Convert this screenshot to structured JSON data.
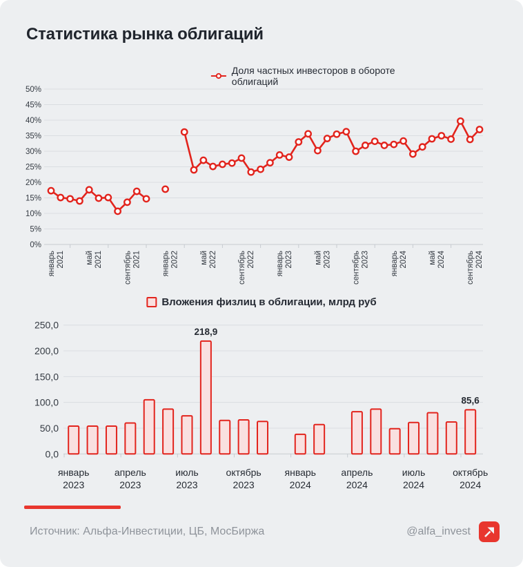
{
  "title": "Статистика рынка облигаций",
  "colors": {
    "background": "#EDEFF1",
    "accent_red": "#E2241D",
    "bar_fill": "#F9E0E0",
    "logo_red": "#E8362E",
    "title_text": "#20252D",
    "axis_text": "#343A42",
    "muted_text": "#8E939A",
    "gridline": "#DADDE1"
  },
  "chart_data": [
    {
      "type": "line",
      "legend": "Доля частных инвесторов в обороте облигаций",
      "unit": "%",
      "x_freq": "monthly",
      "x_start": "январь 2021",
      "x_end": "октябрь 2024",
      "values": [
        17.3,
        15.1,
        14.7,
        14.0,
        17.6,
        14.9,
        15.1,
        10.7,
        13.6,
        17.1,
        14.7,
        null,
        17.8,
        null,
        36.2,
        24.0,
        27.1,
        25.1,
        25.8,
        26.2,
        27.8,
        23.3,
        24.2,
        26.3,
        28.8,
        28.1,
        33.0,
        35.6,
        30.2,
        34.1,
        35.5,
        36.3,
        30.0,
        31.9,
        33.2,
        31.9,
        32.2,
        33.3,
        29.1,
        31.4,
        34.0,
        35.0,
        33.9,
        39.7,
        33.8,
        37.0
      ],
      "ylim": [
        0,
        50
      ],
      "ystep": 5,
      "ytick_format": "percent",
      "grid": true,
      "legend_position": "top",
      "x_ticks": [
        {
          "index": 0,
          "line1": "январь",
          "line2": "2021"
        },
        {
          "index": 4,
          "line1": "май",
          "line2": "2021"
        },
        {
          "index": 8,
          "line1": "сентябрь",
          "line2": "2021"
        },
        {
          "index": 12,
          "line1": "январь",
          "line2": "2022"
        },
        {
          "index": 16,
          "line1": "май",
          "line2": "2022"
        },
        {
          "index": 20,
          "line1": "сентябрь",
          "line2": "2022"
        },
        {
          "index": 24,
          "line1": "январь",
          "line2": "2023"
        },
        {
          "index": 28,
          "line1": "май",
          "line2": "2023"
        },
        {
          "index": 32,
          "line1": "сентябрь",
          "line2": "2023"
        },
        {
          "index": 36,
          "line1": "январь",
          "line2": "2024"
        },
        {
          "index": 40,
          "line1": "май",
          "line2": "2024"
        },
        {
          "index": 44,
          "line1": "сентябрь",
          "line2": "2024"
        }
      ]
    },
    {
      "type": "bar",
      "legend": "Вложения физлиц в облигации, млрд руб",
      "unit": "млрд руб",
      "x_freq": "monthly",
      "x_start": "январь 2023",
      "x_end": "октябрь 2024",
      "values": [
        54,
        54,
        54,
        60,
        105,
        87,
        74,
        218.9,
        65,
        66,
        63,
        null,
        38,
        57,
        null,
        82,
        87,
        49,
        61,
        80,
        62,
        85.6
      ],
      "ylim": [
        0,
        250
      ],
      "ystep": 50,
      "ytick_format": "comma_decimal",
      "grid": true,
      "legend_position": "top",
      "x_ticks": [
        {
          "index": 0,
          "line1": "январь",
          "line2": "2023"
        },
        {
          "index": 3,
          "line1": "апрель",
          "line2": "2023"
        },
        {
          "index": 6,
          "line1": "июль",
          "line2": "2023"
        },
        {
          "index": 9,
          "line1": "октябрь",
          "line2": "2023"
        },
        {
          "index": 12,
          "line1": "январь",
          "line2": "2024"
        },
        {
          "index": 15,
          "line1": "апрель",
          "line2": "2024"
        },
        {
          "index": 18,
          "line1": "июль",
          "line2": "2024"
        },
        {
          "index": 21,
          "line1": "октябрь",
          "line2": "2024"
        }
      ],
      "annotations": [
        {
          "index": 7,
          "text": "218,9"
        },
        {
          "index": 21,
          "text": "85,6"
        }
      ]
    }
  ],
  "footer": {
    "source": "Источник: Альфа-Инвестиции, ЦБ, МосБиржа",
    "handle": "@alfa_invest",
    "logo_icon": "alfa-arrow-up-right-icon"
  }
}
